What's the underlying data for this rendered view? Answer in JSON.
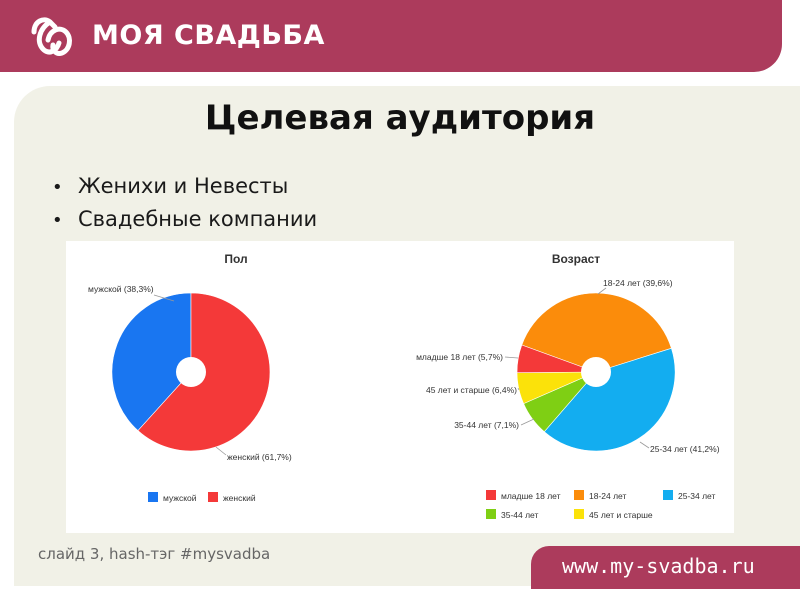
{
  "header": {
    "brand": "МОЯ СВАДЬБА",
    "background_color": "#ac3b5c"
  },
  "slide": {
    "title": "Целевая аудитория",
    "bullets": [
      "Женихи и Невесты",
      "Свадебные компании"
    ],
    "bullet_symbol": "•"
  },
  "footer": {
    "note": "слайд 3, hash-тэг #mysvadba",
    "url": "www.my-svadba.ru"
  },
  "chart_data": [
    {
      "type": "pie",
      "title": "Пол",
      "categories": [
        "мужской",
        "женский"
      ],
      "values": [
        38.3,
        61.7
      ],
      "slice_labels": [
        "мужской (38,3%)",
        "женский (61,7%)"
      ],
      "colors": [
        "#1976f1",
        "#f43939"
      ],
      "legend": "bottom",
      "donut_hole": true
    },
    {
      "type": "pie",
      "title": "Возраст",
      "categories": [
        "18-24 лет",
        "25-34 лет",
        "35-44 лет",
        "45 лет и старше",
        "младше 18 лет"
      ],
      "values": [
        39.6,
        41.2,
        7.1,
        6.4,
        5.7
      ],
      "slice_labels": [
        "18-24 лет (39,6%)",
        "25-34 лет (41,2%)",
        "35-44 лет (7,1%)",
        "45 лет и старше (6,4%)",
        "младше 18 лет (5,7%)"
      ],
      "colors": [
        "#fb8c0b",
        "#13adf0",
        "#7fcf14",
        "#fbe20a",
        "#f43939"
      ],
      "legend_entries": [
        "младше 18 лет",
        "18-24 лет",
        "25-34 лет",
        "35-44 лет",
        "45 лет и старше"
      ],
      "legend_colors": [
        "#f43939",
        "#fb8c0b",
        "#13adf0",
        "#7fcf14",
        "#fbe20a"
      ],
      "legend": "bottom",
      "donut_hole": true
    }
  ]
}
